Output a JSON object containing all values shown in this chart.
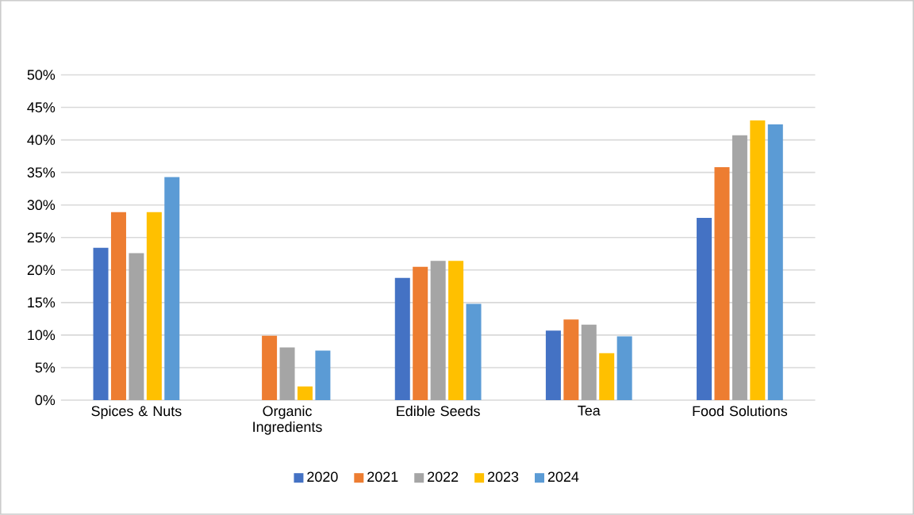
{
  "chart_data": {
    "type": "bar",
    "categories": [
      "Spices & Nuts",
      "Organic Ingredients",
      "Edible Seeds",
      "Tea",
      "Food Solutions"
    ],
    "series": [
      {
        "name": "2020",
        "color": "#4472c4",
        "values": [
          23.4,
          null,
          18.8,
          10.7,
          28.0
        ]
      },
      {
        "name": "2021",
        "color": "#ed7d31",
        "values": [
          28.9,
          9.9,
          20.5,
          12.4,
          35.8
        ]
      },
      {
        "name": "2022",
        "color": "#a5a5a5",
        "values": [
          22.6,
          8.1,
          21.4,
          11.6,
          40.7
        ]
      },
      {
        "name": "2023",
        "color": "#ffc000",
        "values": [
          28.9,
          2.1,
          21.4,
          7.2,
          43.0
        ]
      },
      {
        "name": "2024",
        "color": "#5b9bd5",
        "values": [
          34.3,
          7.6,
          14.8,
          9.8,
          42.4
        ]
      }
    ],
    "ylim": [
      0,
      50
    ],
    "yticks": [
      {
        "value": 0,
        "label": "0%"
      },
      {
        "value": 5,
        "label": "5%"
      },
      {
        "value": 10,
        "label": "10%"
      },
      {
        "value": 15,
        "label": "15%"
      },
      {
        "value": 20,
        "label": "20%"
      },
      {
        "value": 25,
        "label": "25%"
      },
      {
        "value": 30,
        "label": "30%"
      },
      {
        "value": 35,
        "label": "35%"
      },
      {
        "value": 40,
        "label": "40%"
      },
      {
        "value": 45,
        "label": "45%"
      },
      {
        "value": 50,
        "label": "50%"
      }
    ],
    "grid": "y",
    "legend": "bottom"
  }
}
